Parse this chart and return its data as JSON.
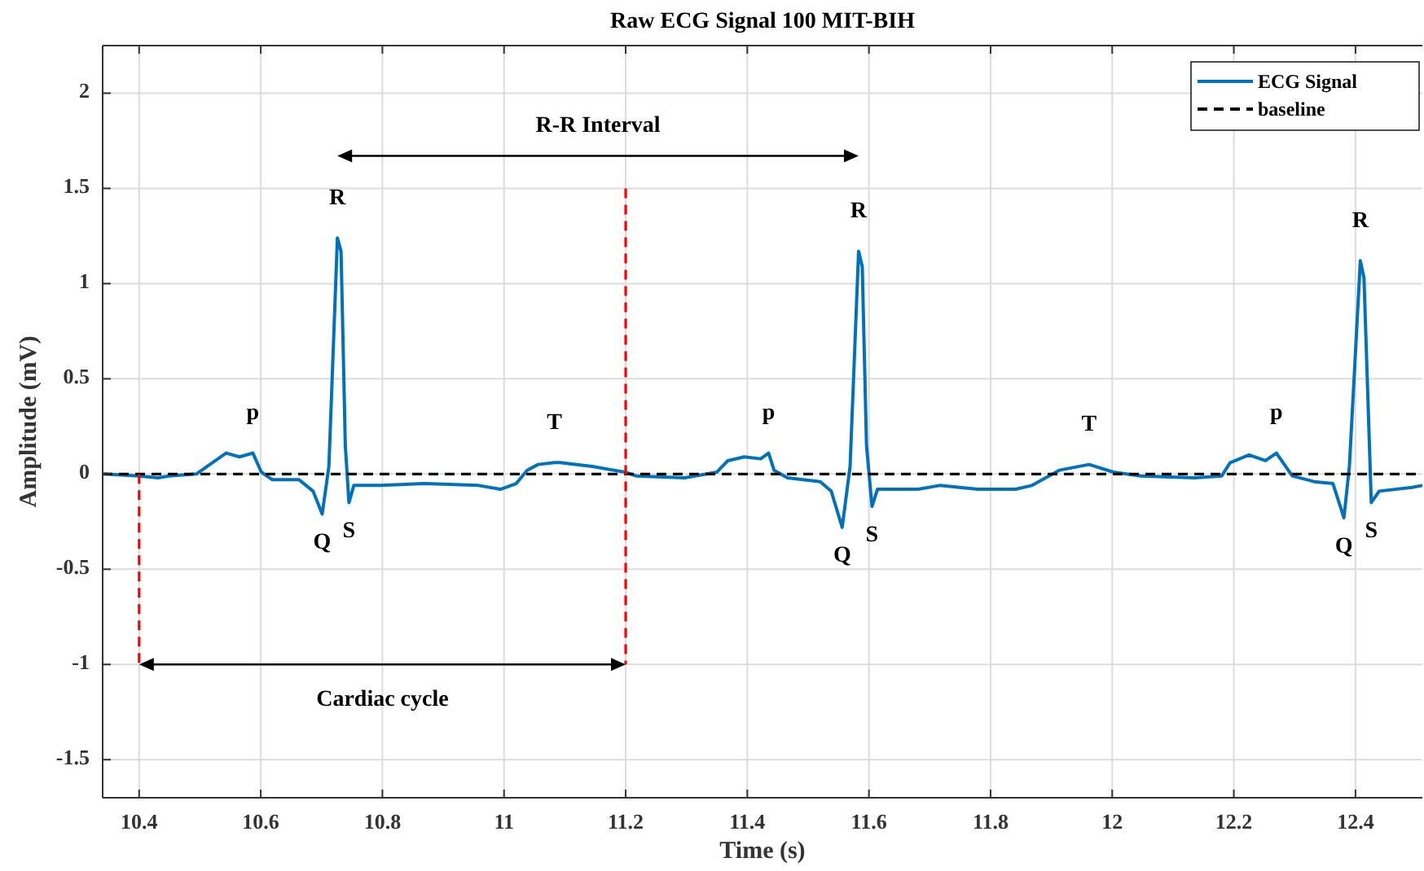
{
  "chart_data": {
    "type": "line",
    "title": "Raw ECG Signal  100 MIT-BIH",
    "xlabel": "Time (s)",
    "ylabel": "Amplitude (mV)",
    "xlim": [
      10.34,
      12.51
    ],
    "ylim": [
      -1.7,
      2.25
    ],
    "xticks": [
      10.4,
      10.6,
      10.8,
      11,
      11.2,
      11.4,
      11.6,
      11.8,
      12,
      12.2,
      12.4
    ],
    "yticks": [
      -1.5,
      -1,
      -0.5,
      0,
      0.5,
      1,
      1.5,
      2
    ],
    "grid": true,
    "legend": "top right",
    "marker": "none",
    "line_style": "solid",
    "series": [
      {
        "name": "ECG Signal",
        "color": "#0072bd",
        "x": [
          10.342,
          10.4,
          10.431,
          10.449,
          10.494,
          10.543,
          10.565,
          10.587,
          10.601,
          10.619,
          10.663,
          10.686,
          10.701,
          10.712,
          10.726,
          10.732,
          10.739,
          10.745,
          10.753,
          10.797,
          10.869,
          10.958,
          10.994,
          11.02,
          11.038,
          11.056,
          11.083,
          11.092,
          11.145,
          11.199,
          11.217,
          11.297,
          11.35,
          11.368,
          11.395,
          11.422,
          11.435,
          11.444,
          11.466,
          11.52,
          11.538,
          11.556,
          11.569,
          11.583,
          11.589,
          11.596,
          11.605,
          11.614,
          11.681,
          11.716,
          11.779,
          11.841,
          11.868,
          11.913,
          11.962,
          12.002,
          12.047,
          12.136,
          12.18,
          12.194,
          12.225,
          12.252,
          12.27,
          12.296,
          12.332,
          12.363,
          12.381,
          12.39,
          12.408,
          12.414,
          12.426,
          12.439,
          12.493,
          12.51
        ],
        "values": [
          0,
          -0.01,
          -0.02,
          -0.01,
          0,
          0.11,
          0.09,
          0.11,
          0.01,
          -0.03,
          -0.03,
          -0.09,
          -0.21,
          0.04,
          1.24,
          1.17,
          0.15,
          -0.15,
          -0.06,
          -0.06,
          -0.05,
          -0.06,
          -0.08,
          -0.05,
          0.02,
          0.05,
          0.06,
          0.06,
          0.04,
          0.01,
          -0.01,
          -0.02,
          0.01,
          0.07,
          0.09,
          0.08,
          0.11,
          0.02,
          -0.02,
          -0.04,
          -0.09,
          -0.28,
          0.04,
          1.17,
          1.09,
          0.15,
          -0.17,
          -0.08,
          -0.08,
          -0.06,
          -0.08,
          -0.08,
          -0.06,
          0.02,
          0.05,
          0.01,
          -0.01,
          -0.02,
          -0.01,
          0.06,
          0.1,
          0.07,
          0.11,
          -0.01,
          -0.04,
          -0.05,
          -0.23,
          0.04,
          1.12,
          1.03,
          -0.15,
          -0.09,
          -0.07,
          -0.06
        ]
      },
      {
        "name": "baseline",
        "color": "#000000",
        "line_style": "dashed",
        "x": [
          10.34,
          12.51
        ],
        "values": [
          0,
          0
        ]
      },
      {
        "color": "#ff0000",
        "line_style": "dashed",
        "x": [
          10.4,
          10.4
        ],
        "values": [
          0,
          -1
        ]
      },
      {
        "color": "#ff0000",
        "line_style": "dashed",
        "x": [
          11.2,
          11.2
        ],
        "values": [
          1.5,
          -1
        ]
      }
    ],
    "annotations": [
      "R-R Interval",
      "Cardiac cycle",
      {
        "text": "R",
        "x": 10.726,
        "y": 1.24
      },
      {
        "text": "R",
        "x": 11.583,
        "y": 1.17
      },
      {
        "text": "R",
        "x": 12.408,
        "y": 1.12
      },
      {
        "text": "p",
        "x": 10.587,
        "y": 0.11
      },
      {
        "text": "p",
        "x": 11.435,
        "y": 0.11
      },
      {
        "text": "p",
        "x": 12.27,
        "y": 0.11
      },
      {
        "text": "T",
        "x": 11.083,
        "y": 0.06
      },
      {
        "text": "T",
        "x": 11.962,
        "y": 0.05
      },
      {
        "text": "Q",
        "x": 10.701,
        "y": -0.21
      },
      {
        "text": "Q",
        "x": 11.556,
        "y": -0.28
      },
      {
        "text": "Q",
        "x": 12.381,
        "y": -0.23
      },
      {
        "text": "S",
        "x": 10.745,
        "y": -0.15
      },
      {
        "text": "S",
        "x": 11.605,
        "y": -0.17
      },
      {
        "text": "S",
        "x": 12.426,
        "y": -0.15
      }
    ]
  }
}
